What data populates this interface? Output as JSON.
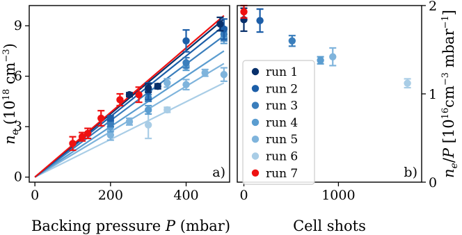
{
  "colors": {
    "run 1": "#08306b",
    "run 2": "#1c5ea8",
    "run 3": "#3a7ebc",
    "run 4": "#5b9dd0",
    "run 5": "#7fb4dc",
    "run 6": "#a9cde6",
    "run 7": "#ee1111"
  },
  "chart_data": [
    {
      "type": "scatter",
      "panel_label": "a)",
      "xlabel": "Backing pressure P (mbar)",
      "ylabel": "n_e (10^18 cm^-3)",
      "xlim": [
        -15,
        515
      ],
      "ylim": [
        -0.3,
        10.2
      ],
      "xticks": [
        0,
        200,
        400
      ],
      "yticks": [
        0,
        3,
        6,
        9
      ],
      "xtick_labels": [
        "0",
        "200",
        "400"
      ],
      "ytick_labels": [
        "0",
        "3",
        "6",
        "9"
      ],
      "grid": false,
      "series": [
        {
          "name": "run 1",
          "fit_slope": 0.0188,
          "points": [
            {
              "x": 250,
              "y": 4.9,
              "err": 0.12
            },
            {
              "x": 300,
              "y": 5.3,
              "err": 0.25
            },
            {
              "x": 325,
              "y": 5.4,
              "err": 0.15
            },
            {
              "x": 490,
              "y": 9.1,
              "err": 0.4
            }
          ]
        },
        {
          "name": "run 2",
          "fit_slope": 0.018,
          "points": [
            {
              "x": 200,
              "y": 3.5,
              "err": 0.15
            },
            {
              "x": 300,
              "y": 5.1,
              "err": 0.5
            },
            {
              "x": 400,
              "y": 8.1,
              "err": 0.65
            },
            {
              "x": 500,
              "y": 8.8,
              "err": 0.6
            }
          ]
        },
        {
          "name": "run 3",
          "fit_slope": 0.0168,
          "points": [
            {
              "x": 200,
              "y": 3.2,
              "err": 0.2
            },
            {
              "x": 300,
              "y": 4.7,
              "err": 0.2
            },
            {
              "x": 400,
              "y": 6.8,
              "err": 0.3
            },
            {
              "x": 500,
              "y": 8.5,
              "err": 0.4
            }
          ]
        },
        {
          "name": "run 4",
          "fit_slope": 0.015,
          "points": [
            {
              "x": 200,
              "y": 3.0,
              "err": 0.3
            },
            {
              "x": 300,
              "y": 4.0,
              "err": 0.25
            },
            {
              "x": 400,
              "y": 6.6,
              "err": 0.25
            },
            {
              "x": 500,
              "y": 8.3,
              "err": 0.35
            }
          ]
        },
        {
          "name": "run 5",
          "fit_slope": 0.0135,
          "points": [
            {
              "x": 200,
              "y": 2.5,
              "err": 0.3
            },
            {
              "x": 250,
              "y": 3.3,
              "err": 0.2
            },
            {
              "x": 350,
              "y": 5.6,
              "err": 0.25
            },
            {
              "x": 400,
              "y": 5.5,
              "err": 0.3
            },
            {
              "x": 450,
              "y": 6.2,
              "err": 0.2
            },
            {
              "x": 500,
              "y": 6.1,
              "err": 0.4
            }
          ]
        },
        {
          "name": "run 6",
          "fit_slope": 0.0112,
          "points": [
            {
              "x": 300,
              "y": 3.1,
              "err": 0.8
            },
            {
              "x": 350,
              "y": 4.0,
              "err": 0.15
            }
          ]
        },
        {
          "name": "run 7",
          "fit_slope": 0.0192,
          "points": [
            {
              "x": 100,
              "y": 2.0,
              "err": 0.4
            },
            {
              "x": 125,
              "y": 2.4,
              "err": 0.25
            },
            {
              "x": 140,
              "y": 2.6,
              "err": 0.3
            },
            {
              "x": 175,
              "y": 3.5,
              "err": 0.45
            },
            {
              "x": 225,
              "y": 4.6,
              "err": 0.35
            },
            {
              "x": 275,
              "y": 4.9,
              "err": 0.45
            }
          ]
        }
      ]
    },
    {
      "type": "scatter",
      "panel_label": "b)",
      "xlabel": "Cell shots",
      "ylabel": "n_e/P [10^16 cm^-3 mbar^-1]",
      "xlim": [
        -70,
        1880
      ],
      "ylim": [
        0,
        2.0
      ],
      "xticks": [
        0,
        1000
      ],
      "yticks": [
        0,
        1,
        2
      ],
      "xtick_labels": [
        "0",
        "1000"
      ],
      "ytick_labels": [
        "0",
        "1",
        "2"
      ],
      "grid": false,
      "legend_position": "center-left",
      "series": [
        {
          "name": "run 1",
          "points": [
            {
              "x": 0,
              "y": 1.84,
              "err": 0.13
            }
          ]
        },
        {
          "name": "run 2",
          "points": [
            {
              "x": 170,
              "y": 1.83,
              "err": 0.13
            }
          ]
        },
        {
          "name": "run 3",
          "points": [
            {
              "x": 510,
              "y": 1.6,
              "err": 0.06
            }
          ]
        },
        {
          "name": "run 4",
          "points": [
            {
              "x": 810,
              "y": 1.38,
              "err": 0.04
            }
          ]
        },
        {
          "name": "run 5",
          "points": [
            {
              "x": 940,
              "y": 1.42,
              "err": 0.1
            }
          ]
        },
        {
          "name": "run 6",
          "points": [
            {
              "x": 1730,
              "y": 1.12,
              "err": 0.05
            }
          ]
        },
        {
          "name": "run 7",
          "points": [
            {
              "x": 0,
              "y": 1.93,
              "err": 0.07
            }
          ]
        }
      ]
    }
  ]
}
